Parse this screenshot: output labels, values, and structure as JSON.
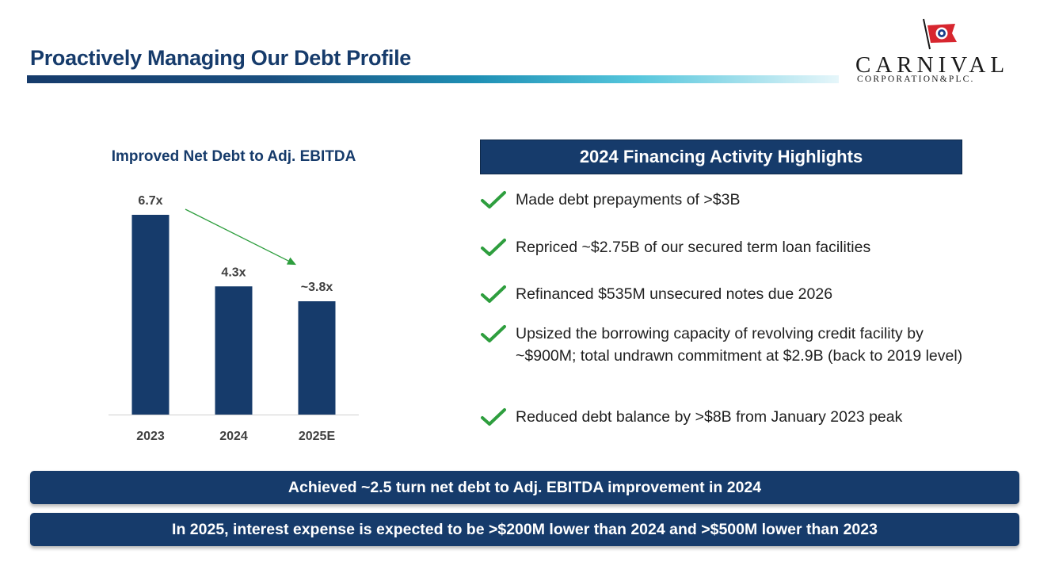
{
  "header": {
    "title": "Proactively Managing Our Debt Profile",
    "logo": {
      "word": "CARNIVAL",
      "sub": "CORPORATION&PLC.",
      "icon": "flag-icon"
    }
  },
  "chart_data": {
    "type": "bar",
    "title": "Improved Net Debt to Adj. EBITDA",
    "categories": [
      "2023",
      "2024",
      "2025E"
    ],
    "values": [
      6.7,
      4.3,
      3.8
    ],
    "data_labels": [
      "6.7x",
      "4.3x",
      "~3.8x"
    ],
    "xlabel": "",
    "ylabel": "",
    "ylim": [
      0,
      6.7
    ],
    "grid": false,
    "legend": "none",
    "bar_color": "#163b6b",
    "annotation": {
      "type": "trend-arrow",
      "from": "2023",
      "to": "2025E",
      "color": "#2e9e3e"
    }
  },
  "highlights": {
    "title": "2024 Financing Activity Highlights",
    "items": [
      "Made debt prepayments of >$3B",
      "Repriced ~$2.75B of our secured term loan facilities",
      "Refinanced $535M unsecured notes due 2026",
      "Upsized the borrowing capacity of revolving credit facility by ~$900M; total undrawn commitment at $2.9B (back to 2019 level)",
      "Reduced debt balance by >$8B from January 2023 peak"
    ],
    "check_icon": "checkmark-icon",
    "check_color": "#2e9e3e"
  },
  "banners": [
    "Achieved ~2.5 turn net debt to Adj. EBITDA improvement in 2024",
    "In 2025, interest expense is expected to be >$200M lower than 2024 and >$500M lower than 2023"
  ]
}
